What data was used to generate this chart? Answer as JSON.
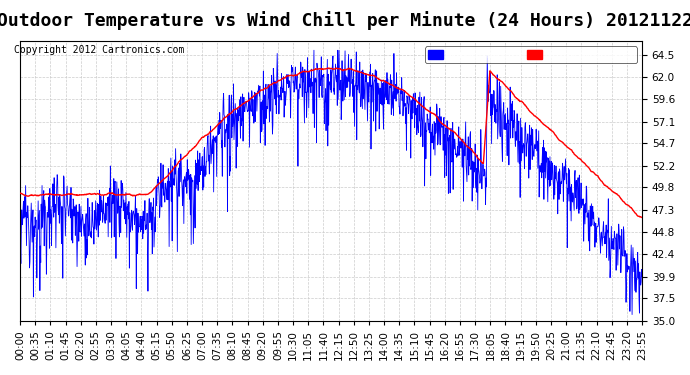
{
  "title": "Outdoor Temperature vs Wind Chill per Minute (24 Hours) 20121122",
  "copyright": "Copyright 2012 Cartronics.com",
  "ylabel_right": "",
  "ylim": [
    35.0,
    66.0
  ],
  "yticks": [
    35.0,
    37.5,
    39.9,
    42.4,
    44.8,
    47.3,
    49.8,
    52.2,
    54.7,
    57.1,
    59.6,
    62.0,
    64.5
  ],
  "background_color": "#ffffff",
  "plot_bg_color": "#ffffff",
  "grid_color": "#cccccc",
  "wind_chill_color": "#0000ff",
  "temperature_color": "#ff0000",
  "legend_wind_chill_bg": "#0000ff",
  "legend_temperature_bg": "#ff0000",
  "legend_text_color": "#ffffff",
  "title_fontsize": 13,
  "tick_fontsize": 7.5,
  "x_tick_labels": [
    "00:00",
    "00:35",
    "01:10",
    "01:45",
    "02:20",
    "02:55",
    "03:30",
    "04:05",
    "04:40",
    "05:15",
    "05:50",
    "06:25",
    "07:00",
    "07:35",
    "08:10",
    "08:45",
    "09:20",
    "09:55",
    "10:30",
    "11:05",
    "11:40",
    "12:15",
    "12:50",
    "13:25",
    "14:00",
    "14:35",
    "15:10",
    "15:45",
    "16:20",
    "16:55",
    "17:30",
    "18:05",
    "18:40",
    "19:15",
    "19:50",
    "20:25",
    "21:00",
    "21:35",
    "22:10",
    "22:45",
    "23:20",
    "23:55"
  ]
}
